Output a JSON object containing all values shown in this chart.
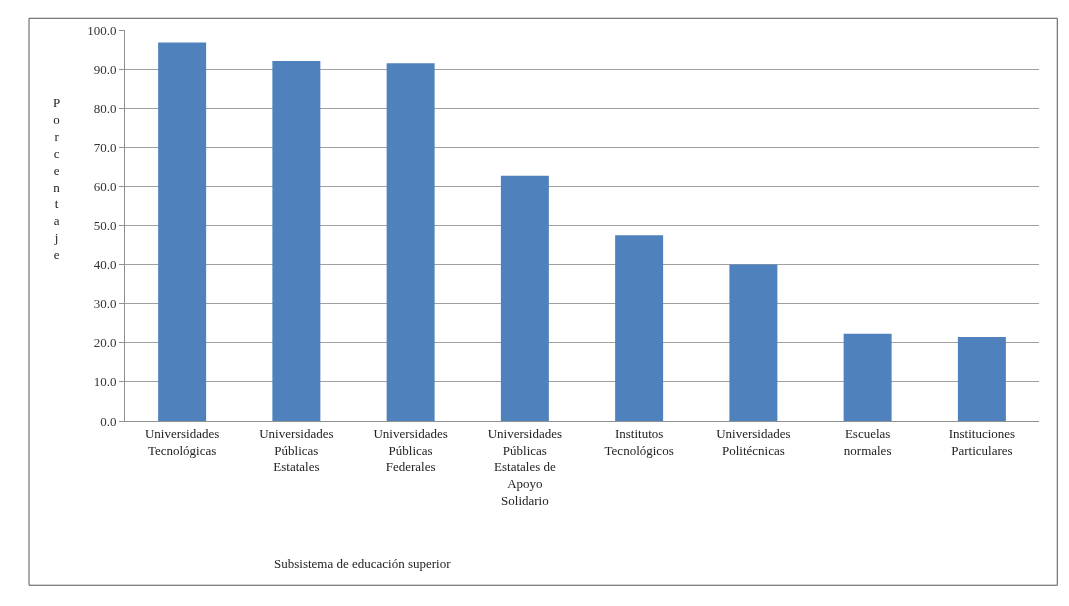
{
  "chart_data": {
    "type": "bar",
    "xlabel": "Subsistema de educación superior",
    "ylabel": "Porcentaje",
    "categories": [
      "Universidades Tecnológicas",
      "Universidades Públicas Estatales",
      "Universidades Públicas Federales",
      "Universidades Públicas Estatales de Apoyo Solidario",
      "Institutos Tecnológicos",
      "Universidades Politécnicas",
      "Escuelas normales",
      "Instituciones Particulares"
    ],
    "values": [
      96.8,
      92.1,
      91.5,
      62.7,
      47.5,
      40.0,
      22.3,
      21.5
    ],
    "color": "#4f81bd",
    "ylim": [
      0,
      100
    ],
    "yticks": [
      {
        "value": 0,
        "label": "0.0"
      },
      {
        "value": 10,
        "label": "10.0"
      },
      {
        "value": 20,
        "label": "20.0"
      },
      {
        "value": 30,
        "label": "30.0"
      },
      {
        "value": 40,
        "label": "40.0"
      },
      {
        "value": 50,
        "label": "50.0"
      },
      {
        "value": 60,
        "label": "60.0"
      },
      {
        "value": 70,
        "label": "70.0"
      },
      {
        "value": 80,
        "label": "80.0"
      },
      {
        "value": 90,
        "label": "90.0"
      },
      {
        "value": 100,
        "label": "100.0"
      }
    ],
    "grid": "y"
  }
}
